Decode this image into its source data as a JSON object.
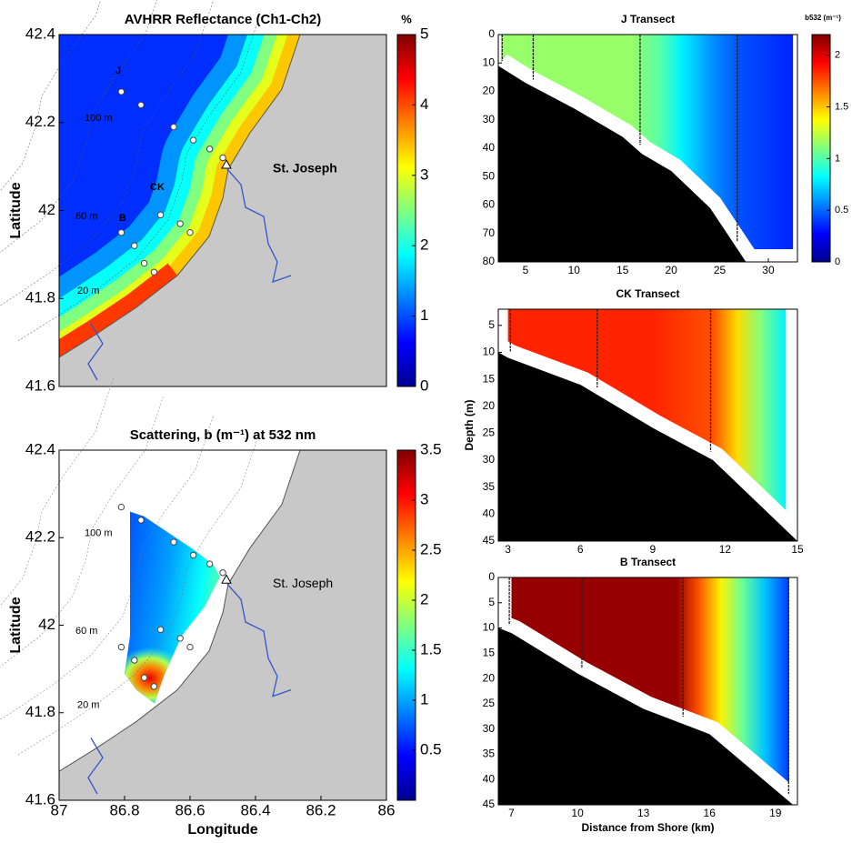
{
  "chart_data": [
    {
      "type": "map",
      "title": "AVHRR Reflectance (Ch1-Ch2)",
      "y_label": "Latitude",
      "xlim": [
        87,
        86
      ],
      "ylim": [
        41.6,
        42.4
      ],
      "yticks": [
        41.6,
        41.8,
        42,
        42.2,
        42.4
      ],
      "colorbar": {
        "label": "%",
        "lim": [
          0,
          5
        ],
        "ticks": [
          0,
          1,
          2,
          3,
          4,
          5
        ],
        "colors": [
          "#00008f",
          "#0000ff",
          "#0080ff",
          "#00ffff",
          "#80ff80",
          "#ffff00",
          "#ff8000",
          "#ff0000",
          "#800000"
        ]
      },
      "stations": {
        "x": [
          86.81,
          86.75,
          86.65,
          86.59,
          86.54,
          86.5,
          86.69,
          86.63,
          86.6,
          86.81,
          86.77,
          86.74,
          86.71
        ],
        "y": [
          42.27,
          42.24,
          42.19,
          42.16,
          42.14,
          42.12,
          41.99,
          41.97,
          41.95,
          41.95,
          41.92,
          41.88,
          41.86
        ]
      },
      "annotations": [
        "J",
        "CK",
        "B",
        "100 m",
        "60 m",
        "20 m",
        "St. Joseph"
      ]
    },
    {
      "type": "map",
      "title": "Scattering, b (m⁻¹) at 532 nm",
      "y_label": "Latitude",
      "x_label": "Longitude",
      "xlim": [
        87,
        86
      ],
      "xticks": [
        87,
        86.8,
        86.6,
        86.4,
        86.2,
        86
      ],
      "ylim": [
        41.6,
        42.4
      ],
      "yticks": [
        41.6,
        41.8,
        42,
        42.2,
        42.4
      ],
      "colorbar": {
        "lim": [
          0,
          3.5
        ],
        "ticks": [
          0.5,
          1,
          1.5,
          2,
          2.5,
          3,
          3.5
        ],
        "colors": [
          "#00008f",
          "#0000ff",
          "#0080ff",
          "#00ffff",
          "#80ff80",
          "#ffff00",
          "#ff8000",
          "#ff0000",
          "#800000"
        ]
      },
      "stations": {
        "x": [
          86.81,
          86.75,
          86.65,
          86.59,
          86.54,
          86.5,
          86.69,
          86.63,
          86.6,
          86.81,
          86.77,
          86.74,
          86.71
        ],
        "y": [
          42.27,
          42.24,
          42.19,
          42.16,
          42.14,
          42.12,
          41.99,
          41.97,
          41.95,
          41.95,
          41.92,
          41.88,
          41.86
        ]
      },
      "annotations": [
        "100 m",
        "60 m",
        "20 m",
        "St. Joseph"
      ]
    },
    {
      "type": "section",
      "title": "J Transect",
      "xlim": [
        2.2,
        33
      ],
      "xticks": [
        5,
        10,
        15,
        20,
        25,
        30
      ],
      "ylim": [
        0,
        80
      ],
      "yticks": [
        0,
        10,
        20,
        30,
        40,
        50,
        60,
        70,
        80
      ],
      "colorbar": {
        "label": "b532 (m⁻¹)",
        "lim": [
          0,
          2.2
        ],
        "ticks": [
          0,
          0.5,
          1,
          1.5,
          2
        ],
        "colors": [
          "#00008f",
          "#0000ff",
          "#0080ff",
          "#00ffff",
          "#80ff80",
          "#ffff00",
          "#ff8000",
          "#ff0000",
          "#800000"
        ]
      },
      "profile": {
        "x": [
          2.5,
          8,
          16,
          19,
          21,
          24,
          27,
          32.5
        ],
        "values": [
          1.15,
          1.15,
          1.15,
          1.0,
          0.8,
          0.6,
          0.45,
          0.35
        ]
      },
      "casts": [
        2.6,
        5.8,
        16.8,
        26.8
      ],
      "bottom": {
        "x": [
          2.2,
          5,
          10,
          15,
          17,
          20,
          24,
          27.7
        ],
        "y": [
          11,
          17,
          26,
          36,
          42,
          48,
          61,
          80
        ]
      }
    },
    {
      "type": "section",
      "title": "CK Transect",
      "y_label": "Depth (m)",
      "xlim": [
        2.6,
        15
      ],
      "xticks": [
        3,
        6,
        9,
        12,
        15
      ],
      "ylim": [
        2,
        45
      ],
      "yticks": [
        5,
        10,
        15,
        20,
        25,
        30,
        35,
        40,
        45
      ],
      "profile": {
        "x": [
          3,
          9,
          11.5,
          12.5,
          13.5,
          14.5
        ],
        "values": [
          1.85,
          1.85,
          1.75,
          1.45,
          1.1,
          0.8
        ]
      },
      "casts": [
        3.1,
        6.7,
        11.4
      ],
      "bottom": {
        "x": [
          2.6,
          3,
          6,
          9,
          11.5,
          15
        ],
        "y": [
          10,
          11,
          16,
          24,
          30,
          45
        ]
      }
    },
    {
      "type": "section",
      "title": "B Transect",
      "x_label": "Distance from Shore (km)",
      "xlim": [
        6.4,
        20
      ],
      "xticks": [
        7,
        10,
        13,
        16,
        19
      ],
      "ylim": [
        0,
        45
      ],
      "yticks": [
        0,
        5,
        10,
        15,
        20,
        25,
        30,
        35,
        40,
        45
      ],
      "profile": {
        "x": [
          7,
          14.5,
          15.5,
          16.5,
          17.5,
          18.5,
          19.6
        ],
        "values": [
          2.15,
          2.15,
          1.75,
          1.4,
          1.05,
          0.7,
          0.4
        ]
      },
      "casts": [
        6.9,
        10.2,
        14.8,
        19.6
      ],
      "bottom": {
        "x": [
          6.4,
          7,
          10,
          13,
          16,
          19.8
        ],
        "y": [
          10,
          11,
          19,
          26,
          31,
          45
        ]
      }
    }
  ]
}
